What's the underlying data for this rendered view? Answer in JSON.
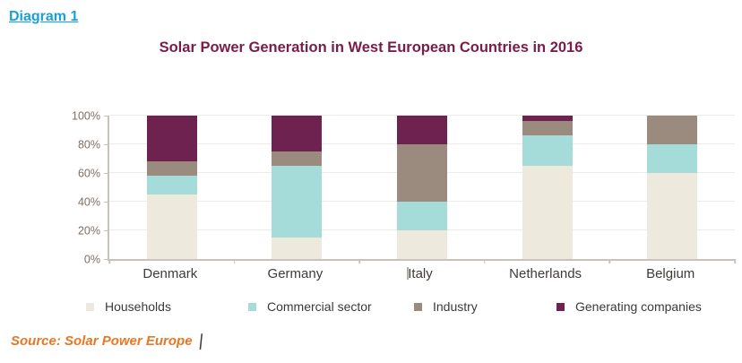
{
  "header": {
    "diagram_label": "Diagram 1"
  },
  "chart_data": {
    "type": "stacked-bar",
    "title": "Solar Power Generation in West European Countries in 2016",
    "categories": [
      "Denmark",
      "Germany",
      "Italy",
      "Netherlands",
      "Belgium"
    ],
    "series": [
      {
        "name": "Households",
        "color": "#EDE9DD",
        "values": [
          45,
          15,
          20,
          65,
          60
        ]
      },
      {
        "name": "Commercial sector",
        "color": "#A5DBD9",
        "values": [
          13,
          50,
          20,
          21,
          20
        ]
      },
      {
        "name": "Industry",
        "color": "#9A8B7E",
        "values": [
          10,
          10,
          40,
          10,
          20
        ]
      },
      {
        "name": "Generating companies",
        "color": "#6E2250",
        "values": [
          32,
          25,
          20,
          4,
          0
        ]
      }
    ],
    "y_ticks": [
      "0%",
      "20%",
      "40%",
      "60%",
      "80%",
      "100%"
    ],
    "ylim": [
      0,
      100
    ],
    "grid": true,
    "legend_position": "bottom"
  },
  "source": {
    "text": "Source: Solar Power Europe",
    "caret": "|"
  },
  "colors": {
    "diagram_link": "#18A0DB",
    "title": "#7A1C4B",
    "axis_tick_label": "#7B6F66",
    "category_label": "#3F3B38",
    "source_text": "#E87725"
  }
}
